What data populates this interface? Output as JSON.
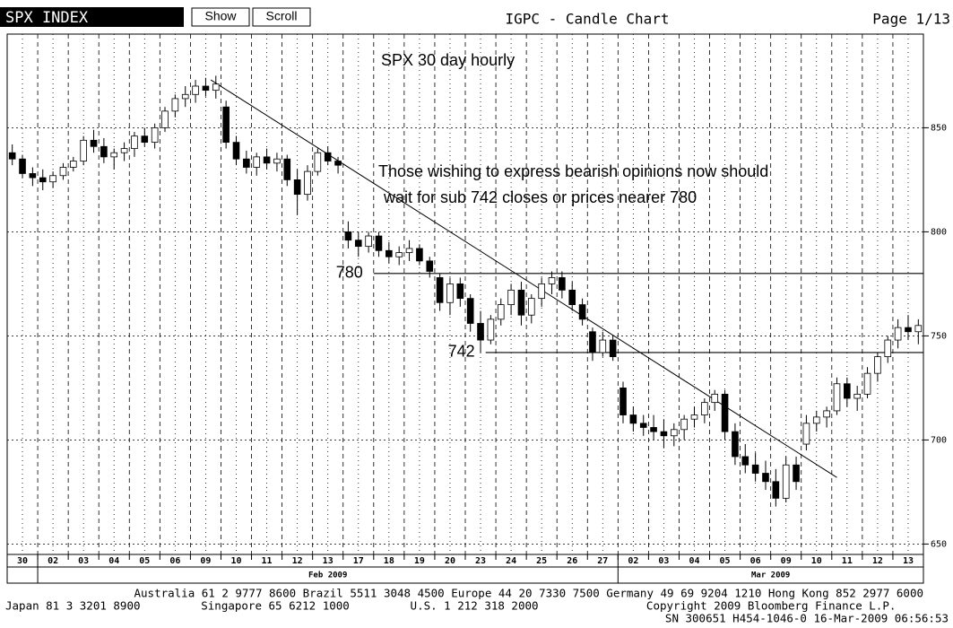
{
  "header": {
    "ticker": "SPX INDEX",
    "buttons": [
      "Show",
      "Scroll"
    ],
    "title": "IGPC - Candle Chart",
    "page": "Page 1/13"
  },
  "chart_data": {
    "type": "candlestick",
    "title": "SPX 30 day hourly",
    "annotations": [
      "Those wishing to express bearish opinions now should",
      "wait for sub 742 closes or prices nearer 780"
    ],
    "ylim": [
      645,
      895
    ],
    "yticks": [
      650,
      700,
      750,
      800,
      850
    ],
    "grid": true,
    "categories": [
      "30",
      "02",
      "03",
      "04",
      "05",
      "06",
      "09",
      "10",
      "11",
      "12",
      "13",
      "17",
      "18",
      "19",
      "20",
      "23",
      "24",
      "25",
      "26",
      "27",
      "02",
      "03",
      "04",
      "05",
      "06",
      "09",
      "10",
      "11",
      "12",
      "13"
    ],
    "months": [
      {
        "label": "Feb 2009",
        "from": 1,
        "to": 19
      },
      {
        "label": "Mar 2009",
        "from": 20,
        "to": 29
      }
    ],
    "levels": [
      {
        "label": "780",
        "value": 780,
        "from": 36
      },
      {
        "label": "742",
        "value": 742,
        "from": 47
      }
    ],
    "trendline": {
      "x": [
        19.5,
        81
      ],
      "values": [
        873,
        682
      ]
    },
    "candles_per_day": 3,
    "open": [
      838,
      835,
      828,
      826,
      824,
      827,
      831,
      834,
      844,
      841,
      836,
      838,
      840,
      846,
      843,
      850,
      858,
      864,
      866,
      870,
      868,
      860,
      843,
      835,
      831,
      836,
      833,
      835,
      825,
      818,
      829,
      838,
      834,
      800,
      796,
      793,
      798,
      791,
      788,
      790,
      792,
      786,
      778,
      766,
      775,
      768,
      756,
      748,
      758,
      765,
      772,
      760,
      768,
      775,
      778,
      772,
      765,
      752,
      742,
      748,
      725,
      712,
      708,
      706,
      704,
      702,
      705,
      710,
      712,
      718,
      722,
      704,
      692,
      688,
      684,
      680,
      672,
      688,
      698,
      708,
      711,
      714,
      727,
      720,
      722,
      732,
      740,
      748,
      754,
      752
    ],
    "high": [
      842,
      837,
      831,
      830,
      829,
      833,
      836,
      846,
      849,
      845,
      840,
      843,
      848,
      850,
      852,
      860,
      866,
      870,
      873,
      874,
      875,
      863,
      846,
      839,
      838,
      840,
      838,
      837,
      830,
      832,
      840,
      841,
      836,
      805,
      800,
      800,
      800,
      795,
      793,
      796,
      794,
      788,
      780,
      778,
      778,
      770,
      762,
      760,
      768,
      775,
      776,
      770,
      778,
      781,
      781,
      776,
      768,
      754,
      752,
      750,
      728,
      716,
      712,
      712,
      710,
      708,
      712,
      716,
      720,
      724,
      724,
      708,
      698,
      694,
      690,
      686,
      692,
      692,
      712,
      714,
      716,
      730,
      730,
      726,
      735,
      742,
      750,
      758,
      760,
      758
    ],
    "low": [
      832,
      826,
      822,
      820,
      821,
      825,
      829,
      832,
      838,
      833,
      830,
      834,
      836,
      841,
      840,
      848,
      855,
      860,
      862,
      865,
      864,
      840,
      832,
      828,
      827,
      830,
      829,
      822,
      808,
      815,
      827,
      832,
      828,
      792,
      788,
      790,
      788,
      785,
      784,
      786,
      784,
      778,
      762,
      760,
      764,
      752,
      742,
      746,
      755,
      760,
      755,
      756,
      764,
      770,
      768,
      762,
      755,
      738,
      740,
      738,
      708,
      704,
      702,
      700,
      696,
      697,
      700,
      706,
      708,
      714,
      700,
      688,
      684,
      680,
      676,
      668,
      670,
      676,
      695,
      704,
      706,
      712,
      716,
      714,
      720,
      728,
      737,
      744,
      748,
      746
    ],
    "close": [
      835,
      828,
      826,
      824,
      827,
      831,
      834,
      844,
      841,
      836,
      838,
      840,
      846,
      843,
      850,
      858,
      864,
      866,
      870,
      868,
      871,
      843,
      835,
      831,
      836,
      833,
      835,
      825,
      818,
      829,
      838,
      834,
      832,
      796,
      793,
      798,
      791,
      788,
      790,
      792,
      786,
      781,
      766,
      775,
      768,
      756,
      748,
      758,
      765,
      772,
      760,
      768,
      775,
      778,
      772,
      765,
      758,
      742,
      748,
      740,
      712,
      708,
      706,
      704,
      702,
      705,
      710,
      712,
      718,
      722,
      704,
      692,
      688,
      684,
      680,
      672,
      688,
      680,
      708,
      711,
      714,
      727,
      720,
      722,
      732,
      740,
      748,
      754,
      752,
      755
    ]
  },
  "footer": [
    "Australia 61 2 9777 8600 Brazil 5511 3048 4500 Europe 44 20 7330 7500 Germany 49 69 9204 1210 Hong Kong 852 2977 6000",
    "Japan 81 3 3201 8900         Singapore 65 6212 1000         U.S. 1 212 318 2000                Copyright 2009 Bloomberg Finance L.P.",
    "SN 300651 H454-1046-0 16-Mar-2009 06:56:53"
  ]
}
